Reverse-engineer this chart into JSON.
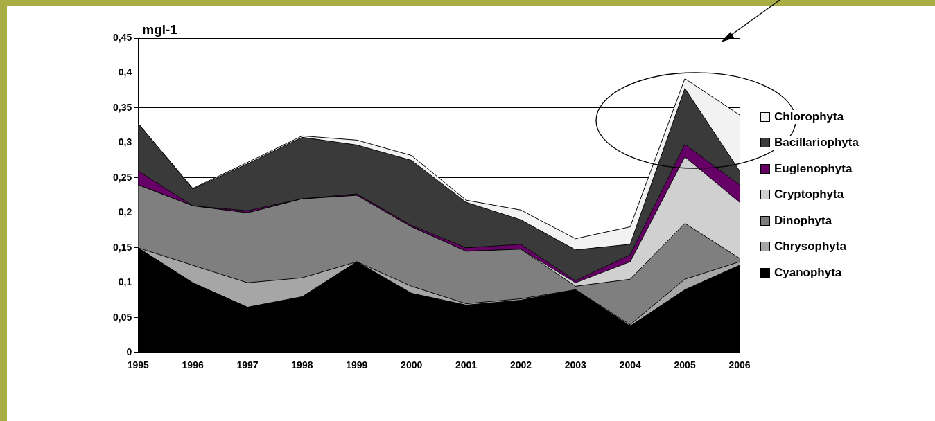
{
  "chart_data": {
    "type": "area",
    "stacked": true,
    "ylabel": "mgl-1",
    "categories": [
      "1995",
      "1996",
      "1997",
      "1998",
      "1999",
      "2000",
      "2001",
      "2002",
      "2003",
      "2004",
      "2005",
      "2006"
    ],
    "ylim": [
      0,
      0.45
    ],
    "yticks": [
      {
        "value": 0,
        "label": "0"
      },
      {
        "value": 0.05,
        "label": "0,05"
      },
      {
        "value": 0.1,
        "label": "0,1"
      },
      {
        "value": 0.15,
        "label": "0,15"
      },
      {
        "value": 0.2,
        "label": "0,2"
      },
      {
        "value": 0.25,
        "label": "0,25"
      },
      {
        "value": 0.3,
        "label": "0,3"
      },
      {
        "value": 0.35,
        "label": "0,35"
      },
      {
        "value": 0.4,
        "label": "0,4"
      },
      {
        "value": 0.45,
        "label": "0,45"
      }
    ],
    "grid": "y",
    "legend": "right",
    "series": [
      {
        "name": "Cyanophyta",
        "color": "#000000",
        "values": [
          0.15,
          0.1,
          0.065,
          0.08,
          0.13,
          0.085,
          0.068,
          0.075,
          0.09,
          0.038,
          0.09,
          0.125
        ]
      },
      {
        "name": "Chrysophyta",
        "color": "#a6a6a6",
        "values": [
          0,
          0.025,
          0.035,
          0.027,
          0,
          0.01,
          0.002,
          0.002,
          0,
          0.002,
          0.015,
          0.005
        ]
      },
      {
        "name": "Dinophyta",
        "color": "#7f7f7f",
        "values": [
          0.09,
          0.085,
          0.1,
          0.113,
          0.095,
          0.085,
          0.075,
          0.071,
          0.005,
          0.065,
          0.08,
          0.005
        ]
      },
      {
        "name": "Cryptophyta",
        "color": "#d0d0d0",
        "values": [
          0,
          0,
          0,
          0,
          0,
          0,
          0,
          0,
          0.005,
          0.025,
          0.095,
          0.08
        ]
      },
      {
        "name": "Euglenophyta",
        "color": "#660066",
        "values": [
          0.02,
          0,
          0.003,
          0,
          0.002,
          0.002,
          0.005,
          0.007,
          0.003,
          0.01,
          0.018,
          0.025
        ]
      },
      {
        "name": "Bacillariophyta",
        "color": "#3a3a3a",
        "values": [
          0.068,
          0.024,
          0.067,
          0.088,
          0.07,
          0.093,
          0.065,
          0.035,
          0.044,
          0.015,
          0.08,
          0.02
        ]
      },
      {
        "name": "Chlorophyta",
        "color": "#f2f2f2",
        "values": [
          0,
          0.001,
          0.002,
          0.002,
          0.007,
          0.007,
          0.003,
          0.014,
          0.016,
          0.025,
          0.014,
          0.08
        ]
      }
    ]
  }
}
